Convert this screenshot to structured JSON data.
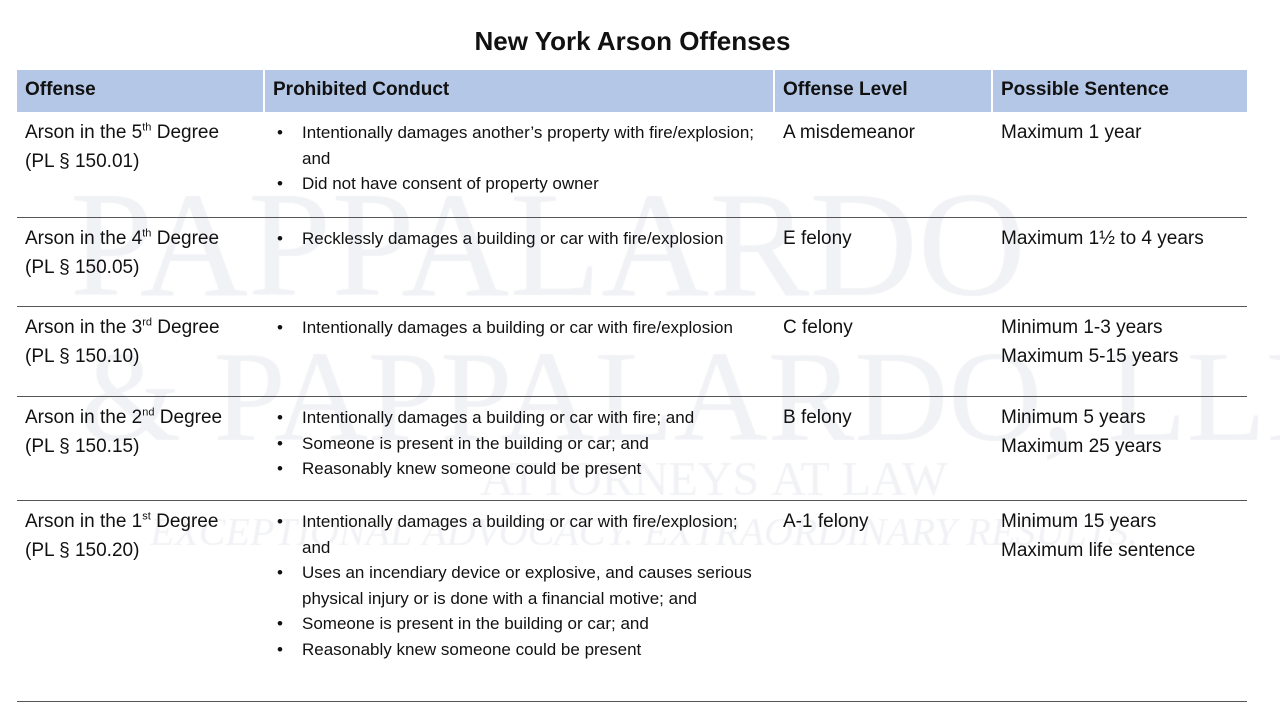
{
  "title": "New York Arson Offenses",
  "watermark": {
    "line1": "PAPPALARDO",
    "line2": "& PAPPALARDO, LLP",
    "line3": "Attorneys At Law",
    "line4": "Exceptional Advocacy. Extraordinary Results."
  },
  "headers": [
    "Offense",
    "Prohibited Conduct",
    "Offense Level",
    "Possible Sentence"
  ],
  "header_color": "#b4c7e7",
  "rows": [
    {
      "name_pre": "Arson in the 5",
      "sup": "th",
      "name_post": " Degree",
      "statute": "(PL § 150.01)",
      "conduct": [
        "Intentionally damages another’s property with fire/explosion; and",
        "Did not have consent of property owner"
      ],
      "level": "A misdemeanor",
      "sentence": [
        "Maximum 1 year"
      ]
    },
    {
      "name_pre": "Arson in the 4",
      "sup": "th",
      "name_post": " Degree",
      "statute": "(PL § 150.05)",
      "conduct": [
        "Recklessly damages a building or car with fire/explosion"
      ],
      "level": "E felony",
      "sentence": [
        "Maximum 1½ to 4 years"
      ]
    },
    {
      "name_pre": "Arson in the 3",
      "sup": "rd",
      "name_post": " Degree",
      "statute": "(PL § 150.10)",
      "conduct": [
        "Intentionally damages a building or car with fire/explosion"
      ],
      "level": "C felony",
      "sentence": [
        "Minimum 1-3 years",
        "Maximum 5-15 years"
      ]
    },
    {
      "name_pre": "Arson in the 2",
      "sup": "nd",
      "name_post": " Degree",
      "statute": "(PL § 150.15)",
      "conduct": [
        "Intentionally damages a building or car with fire; and",
        "Someone is present in the building or car; and",
        "Reasonably knew someone could be present"
      ],
      "level": "B felony",
      "sentence": [
        "Minimum 5 years",
        "Maximum 25 years"
      ]
    },
    {
      "name_pre": "Arson in the 1",
      "sup": "st",
      "name_post": " Degree",
      "statute": "(PL § 150.20)",
      "conduct": [
        "Intentionally damages a building or car with fire/explosion; and",
        "Uses an incendiary device or explosive, and causes serious physical injury or is done with a financial motive; and",
        "Someone is present in the building or car; and",
        "Reasonably knew someone could be present"
      ],
      "level": "A-1 felony",
      "sentence": [
        "Minimum 15 years",
        "Maximum life sentence"
      ]
    }
  ]
}
